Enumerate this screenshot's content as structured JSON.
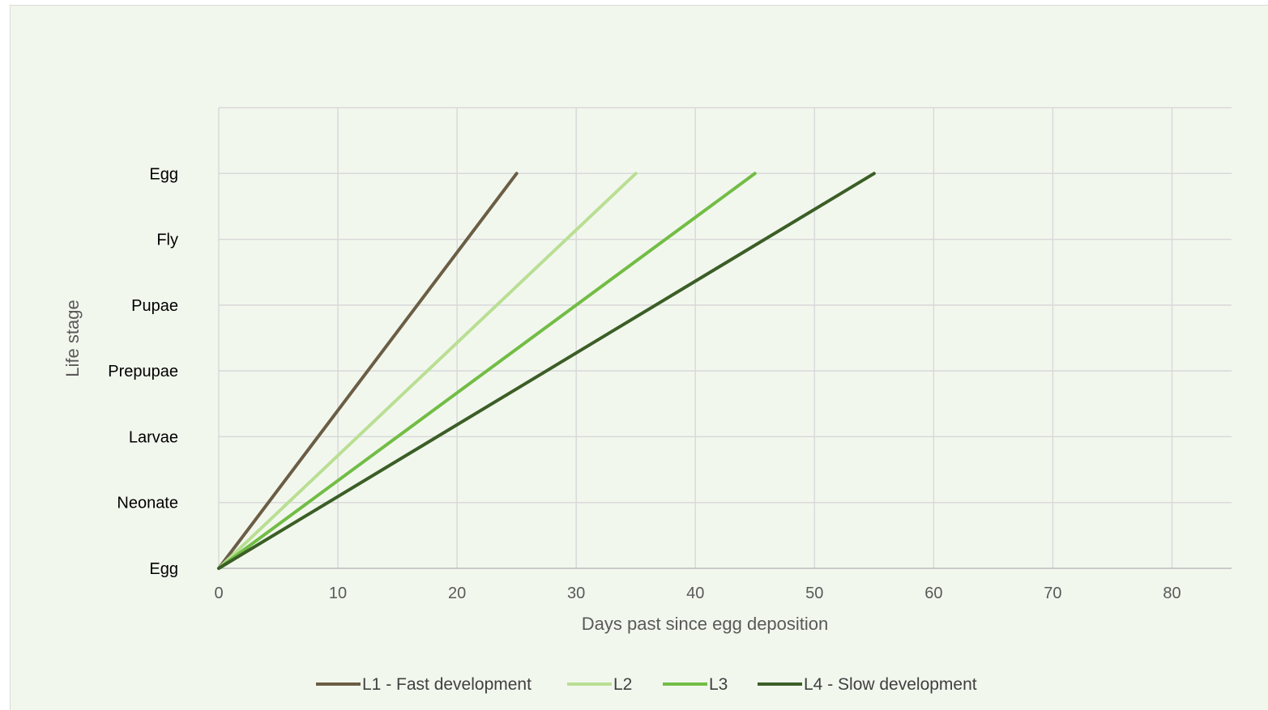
{
  "chart_data": {
    "type": "line",
    "title": "",
    "xlabel": "Days past since egg deposition",
    "ylabel": "Life stage",
    "xlim": [
      0,
      85
    ],
    "x_ticks": [
      0,
      10,
      20,
      30,
      40,
      50,
      60,
      70,
      80
    ],
    "y_categories": [
      "Egg",
      "Neonate",
      "Larvae",
      "Prepupae",
      "Pupae",
      "Fly",
      "Egg"
    ],
    "ylim": [
      0,
      7
    ],
    "grid": true,
    "legend_position": "bottom",
    "series": [
      {
        "name": "L1 - Fast development",
        "color": "#6b5e45",
        "points": [
          [
            0,
            0
          ],
          [
            25,
            6
          ]
        ]
      },
      {
        "name": "L2",
        "color": "#b9df93",
        "points": [
          [
            0,
            0
          ],
          [
            35,
            6
          ]
        ]
      },
      {
        "name": "L3",
        "color": "#72bd45",
        "points": [
          [
            0,
            0
          ],
          [
            45,
            6
          ]
        ]
      },
      {
        "name": "L4 - Slow development",
        "color": "#3b5e26",
        "points": [
          [
            0,
            0
          ],
          [
            55,
            6
          ]
        ]
      }
    ]
  }
}
